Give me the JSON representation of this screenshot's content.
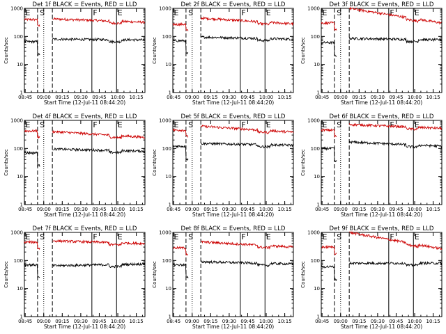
{
  "figure": {
    "x_ticks": [
      "08:45",
      "09:00",
      "09:15",
      "09:30",
      "09:45",
      "10:00",
      "10:15"
    ],
    "y_ticks": [
      "1",
      "10",
      "100",
      "1000"
    ]
  },
  "chart_data": [
    {
      "type": "line",
      "title": "Det 1f BLACK = Events, RED = LLD",
      "xlabel": "Start Time (12-Jul-11 08:44:20)",
      "ylabel": "Counts/sec",
      "y_scale": "log",
      "ylim": [
        1,
        1000
      ],
      "x_ticks": [
        "08:45",
        "09:00",
        "09:15",
        "09:30",
        "09:45",
        "10:00",
        "10:15"
      ],
      "series": [
        {
          "color": "#cc0000",
          "pre": 400,
          "post": 420,
          "end": 320
        },
        {
          "color": "#000000",
          "pre": 65,
          "post": 80,
          "end": 75
        }
      ],
      "events": {
        "solid": [
          "09:39",
          "09:59"
        ],
        "dashed": [
          "08:55",
          "09:07"
        ],
        "dotted": [
          "09:00"
        ]
      },
      "markers": [
        "E",
        "S",
        "F",
        "E"
      ]
    },
    {
      "type": "line",
      "title": "Det 2f BLACK = Events, RED = LLD",
      "xlabel": "Start Time (12-Jul-11 08:44:20)",
      "ylabel": "Counts/sec",
      "y_scale": "log",
      "ylim": [
        1,
        1000
      ],
      "x_ticks": [
        "08:45",
        "09:00",
        "09:15",
        "09:30",
        "09:45",
        "10:00",
        "10:15"
      ],
      "series": [
        {
          "color": "#cc0000",
          "pre": 270,
          "post": 450,
          "end": 280
        },
        {
          "color": "#000000",
          "pre": 70,
          "post": 95,
          "end": 80
        }
      ],
      "events": {
        "solid": [
          "09:39",
          "09:59"
        ],
        "dashed": [
          "08:55",
          "09:07"
        ],
        "dotted": [
          "09:00"
        ]
      },
      "markers": [
        "E",
        "S",
        "F",
        "E"
      ]
    },
    {
      "type": "line",
      "title": "Det 3f BLACK = Events, RED = LLD",
      "xlabel": "Start Time (12-Jul-11 08:44:20)",
      "ylabel": "Counts/sec",
      "y_scale": "log",
      "ylim": [
        1,
        1000
      ],
      "x_ticks": [
        "08:45",
        "09:00",
        "09:15",
        "09:30",
        "09:45",
        "10:00",
        "10:15"
      ],
      "series": [
        {
          "color": "#cc0000",
          "pre": 300,
          "post": 1000,
          "end": 300
        },
        {
          "color": "#000000",
          "pre": 60,
          "post": 85,
          "end": 75
        }
      ],
      "events": {
        "solid": [
          "09:39",
          "09:59"
        ],
        "dashed": [
          "08:55",
          "09:07"
        ],
        "dotted": [
          "09:00"
        ]
      },
      "markers": [
        "E",
        "S",
        "F",
        "E"
      ]
    },
    {
      "type": "line",
      "title": "Det 4f BLACK = Events, RED = LLD",
      "xlabel": "Start Time (12-Jul-11 08:44:20)",
      "ylabel": "Counts/sec",
      "y_scale": "log",
      "ylim": [
        1,
        1000
      ],
      "x_ticks": [
        "08:45",
        "09:00",
        "09:15",
        "09:30",
        "09:45",
        "10:00",
        "10:15"
      ],
      "series": [
        {
          "color": "#cc0000",
          "pre": 420,
          "post": 400,
          "end": 250
        },
        {
          "color": "#000000",
          "pre": 70,
          "post": 95,
          "end": 80
        }
      ],
      "events": {
        "solid": [
          "09:39",
          "09:59"
        ],
        "dashed": [
          "08:55",
          "09:07"
        ],
        "dotted": [
          "09:00"
        ]
      },
      "markers": [
        "E",
        "S",
        "F",
        "E"
      ]
    },
    {
      "type": "line",
      "title": "Det 5f BLACK = Events, RED = LLD",
      "xlabel": "Start Time (12-Jul-11 08:44:20)",
      "ylabel": "Counts/sec",
      "y_scale": "log",
      "ylim": [
        1,
        1000
      ],
      "x_ticks": [
        "08:45",
        "09:00",
        "09:15",
        "09:30",
        "09:45",
        "10:00",
        "10:15"
      ],
      "series": [
        {
          "color": "#cc0000",
          "pre": 450,
          "post": 620,
          "end": 380
        },
        {
          "color": "#000000",
          "pre": 120,
          "post": 150,
          "end": 130
        }
      ],
      "events": {
        "solid": [
          "09:39",
          "09:59"
        ],
        "dashed": [
          "08:55",
          "09:07"
        ],
        "dotted": [
          "09:00"
        ]
      },
      "markers": [
        "E",
        "S",
        "F",
        "E"
      ]
    },
    {
      "type": "line",
      "title": "Det 6f BLACK = Events, RED = LLD",
      "xlabel": "Start Time (12-Jul-11 08:44:20)",
      "ylabel": "Counts/sec",
      "y_scale": "log",
      "ylim": [
        1,
        1000
      ],
      "x_ticks": [
        "08:45",
        "09:00",
        "09:15",
        "09:30",
        "09:45",
        "10:00",
        "10:15"
      ],
      "series": [
        {
          "color": "#cc0000",
          "pre": 450,
          "post": 720,
          "end": 520
        },
        {
          "color": "#000000",
          "pre": 100,
          "post": 170,
          "end": 120
        }
      ],
      "events": {
        "solid": [
          "09:39",
          "09:59"
        ],
        "dashed": [
          "08:55",
          "09:07"
        ],
        "dotted": [
          "09:00"
        ]
      },
      "markers": [
        "E",
        "S",
        "F",
        "E"
      ]
    },
    {
      "type": "line",
      "title": "Det 7f BLACK = Events, RED = LLD",
      "xlabel": "Start Time (12-Jul-11 08:44:20)",
      "ylabel": "Counts/sec",
      "y_scale": "log",
      "ylim": [
        1,
        1000
      ],
      "x_ticks": [
        "08:45",
        "09:00",
        "09:15",
        "09:30",
        "09:45",
        "10:00",
        "10:15"
      ],
      "series": [
        {
          "color": "#cc0000",
          "pre": 450,
          "post": 500,
          "end": 400
        },
        {
          "color": "#000000",
          "pre": 70,
          "post": 65,
          "end": 75
        }
      ],
      "events": {
        "solid": [
          "09:39",
          "09:59"
        ],
        "dashed": [
          "08:55",
          "09:07"
        ],
        "dotted": [
          "09:00"
        ]
      },
      "markers": [
        "E",
        "S",
        "F",
        "E"
      ]
    },
    {
      "type": "line",
      "title": "Det 8f BLACK = Events, RED = LLD",
      "xlabel": "Start Time (12-Jul-11 08:44:20)",
      "ylabel": "Counts/sec",
      "y_scale": "log",
      "ylim": [
        1,
        1000
      ],
      "x_ticks": [
        "08:45",
        "09:00",
        "09:15",
        "09:30",
        "09:45",
        "10:00",
        "10:15"
      ],
      "series": [
        {
          "color": "#cc0000",
          "pre": 280,
          "post": 460,
          "end": 300
        },
        {
          "color": "#000000",
          "pre": 70,
          "post": 90,
          "end": 75
        }
      ],
      "events": {
        "solid": [
          "09:39",
          "09:59"
        ],
        "dashed": [
          "08:55",
          "09:07"
        ],
        "dotted": [
          "09:00"
        ]
      },
      "markers": [
        "E",
        "S",
        "F",
        "E"
      ]
    },
    {
      "type": "line",
      "title": "Det 9f BLACK = Events, RED = LLD",
      "xlabel": "Start Time (12-Jul-11 08:44:20)",
      "ylabel": "Counts/sec",
      "y_scale": "log",
      "ylim": [
        1,
        1000
      ],
      "x_ticks": [
        "08:45",
        "09:00",
        "09:15",
        "09:30",
        "09:45",
        "10:00",
        "10:15"
      ],
      "series": [
        {
          "color": "#cc0000",
          "pre": 300,
          "post": 1000,
          "end": 260
        },
        {
          "color": "#000000",
          "pre": 60,
          "post": 80,
          "end": 80
        }
      ],
      "events": {
        "solid": [
          "09:39",
          "09:59"
        ],
        "dashed": [
          "08:55",
          "09:07"
        ],
        "dotted": [
          "09:00"
        ]
      },
      "markers": [
        "E",
        "S",
        "F",
        "E"
      ]
    }
  ]
}
